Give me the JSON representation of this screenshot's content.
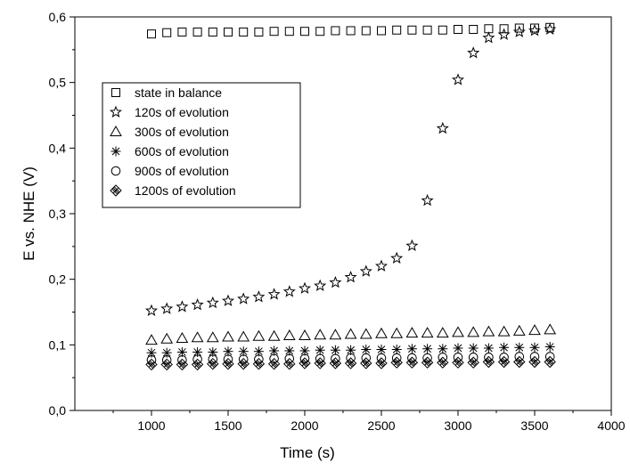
{
  "chart_data": {
    "type": "scatter",
    "xlabel": "Time (s)",
    "ylabel": "E vs. NHE (V)",
    "xlim": [
      500,
      4000
    ],
    "ylim": [
      0.0,
      0.6
    ],
    "x_ticks": [
      "1000",
      "1500",
      "2000",
      "2500",
      "3000",
      "3500",
      "4000"
    ],
    "y_ticks": [
      "0,0",
      "0,1",
      "0,2",
      "0,3",
      "0,4",
      "0,5",
      "0,6"
    ],
    "grid": false,
    "legend_position": "upper-left",
    "series": [
      {
        "name": "state in balance",
        "marker": "square",
        "x": [
          1000,
          1100,
          1200,
          1300,
          1400,
          1500,
          1600,
          1700,
          1800,
          1900,
          2000,
          2100,
          2200,
          2300,
          2400,
          2500,
          2600,
          2700,
          2800,
          2900,
          3000,
          3100,
          3200,
          3300,
          3400,
          3500,
          3600
        ],
        "values": [
          0.574,
          0.576,
          0.577,
          0.577,
          0.577,
          0.577,
          0.577,
          0.577,
          0.578,
          0.578,
          0.578,
          0.578,
          0.579,
          0.579,
          0.579,
          0.579,
          0.58,
          0.58,
          0.58,
          0.58,
          0.581,
          0.581,
          0.582,
          0.582,
          0.583,
          0.583,
          0.584
        ]
      },
      {
        "name": "120s of evolution",
        "marker": "star",
        "x": [
          1000,
          1100,
          1200,
          1300,
          1400,
          1500,
          1600,
          1700,
          1800,
          1900,
          2000,
          2100,
          2200,
          2300,
          2400,
          2500,
          2600,
          2700,
          2800,
          2900,
          3000,
          3100,
          3200,
          3300,
          3400,
          3500,
          3600
        ],
        "values": [
          0.152,
          0.155,
          0.158,
          0.161,
          0.164,
          0.167,
          0.17,
          0.173,
          0.177,
          0.181,
          0.186,
          0.19,
          0.195,
          0.203,
          0.212,
          0.22,
          0.232,
          0.251,
          0.32,
          0.43,
          0.504,
          0.545,
          0.568,
          0.573,
          0.577,
          0.579,
          0.581
        ]
      },
      {
        "name": "300s of evolution",
        "marker": "triangle",
        "x": [
          1000,
          1100,
          1200,
          1300,
          1400,
          1500,
          1600,
          1700,
          1800,
          1900,
          2000,
          2100,
          2200,
          2300,
          2400,
          2500,
          2600,
          2700,
          2800,
          2900,
          3000,
          3100,
          3200,
          3300,
          3400,
          3500,
          3600
        ],
        "values": [
          0.107,
          0.109,
          0.11,
          0.111,
          0.111,
          0.112,
          0.112,
          0.113,
          0.113,
          0.114,
          0.114,
          0.115,
          0.115,
          0.116,
          0.116,
          0.117,
          0.117,
          0.118,
          0.118,
          0.118,
          0.119,
          0.119,
          0.12,
          0.12,
          0.121,
          0.122,
          0.123
        ]
      },
      {
        "name": "600s of evolution",
        "marker": "asterisk",
        "x": [
          1000,
          1100,
          1200,
          1300,
          1400,
          1500,
          1600,
          1700,
          1800,
          1900,
          2000,
          2100,
          2200,
          2300,
          2400,
          2500,
          2600,
          2700,
          2800,
          2900,
          3000,
          3100,
          3200,
          3300,
          3400,
          3500,
          3600
        ],
        "values": [
          0.088,
          0.088,
          0.089,
          0.089,
          0.089,
          0.09,
          0.09,
          0.09,
          0.091,
          0.091,
          0.091,
          0.092,
          0.092,
          0.092,
          0.093,
          0.093,
          0.093,
          0.094,
          0.094,
          0.094,
          0.095,
          0.095,
          0.095,
          0.096,
          0.096,
          0.096,
          0.097
        ]
      },
      {
        "name": "900s of evolution",
        "marker": "circle",
        "x": [
          1000,
          1100,
          1200,
          1300,
          1400,
          1500,
          1600,
          1700,
          1800,
          1900,
          2000,
          2100,
          2200,
          2300,
          2400,
          2500,
          2600,
          2700,
          2800,
          2900,
          3000,
          3100,
          3200,
          3300,
          3400,
          3500,
          3600
        ],
        "values": [
          0.077,
          0.077,
          0.077,
          0.078,
          0.078,
          0.078,
          0.078,
          0.078,
          0.079,
          0.079,
          0.079,
          0.079,
          0.079,
          0.08,
          0.08,
          0.08,
          0.08,
          0.08,
          0.08,
          0.081,
          0.081,
          0.081,
          0.081,
          0.081,
          0.082,
          0.082,
          0.082
        ]
      },
      {
        "name": "1200s of evolution",
        "marker": "crossed-diamond",
        "x": [
          1000,
          1100,
          1200,
          1300,
          1400,
          1500,
          1600,
          1700,
          1800,
          1900,
          2000,
          2100,
          2200,
          2300,
          2400,
          2500,
          2600,
          2700,
          2800,
          2900,
          3000,
          3100,
          3200,
          3300,
          3400,
          3500,
          3600
        ],
        "values": [
          0.07,
          0.07,
          0.07,
          0.07,
          0.071,
          0.071,
          0.071,
          0.071,
          0.071,
          0.071,
          0.072,
          0.072,
          0.072,
          0.072,
          0.072,
          0.072,
          0.073,
          0.073,
          0.073,
          0.073,
          0.073,
          0.073,
          0.074,
          0.074,
          0.074,
          0.074,
          0.074
        ]
      }
    ]
  }
}
